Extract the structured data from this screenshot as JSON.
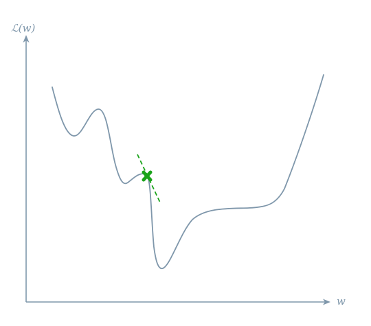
{
  "axes": {
    "y_label": "ℒ(w)",
    "x_label": "w"
  },
  "colors": {
    "axis": "#7f97ab",
    "curve": "#7f97ab",
    "point": "#1aa31a"
  },
  "icons": {
    "current_point": "x-mark-icon"
  }
}
